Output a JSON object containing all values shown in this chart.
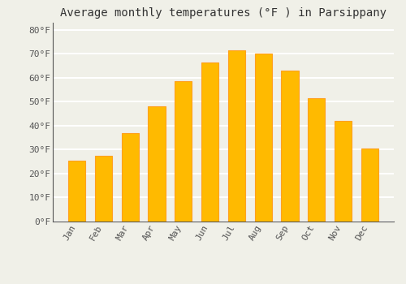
{
  "title": "Average monthly temperatures (°F ) in Parsippany",
  "months": [
    "Jan",
    "Feb",
    "Mar",
    "Apr",
    "May",
    "Jun",
    "Jul",
    "Aug",
    "Sep",
    "Oct",
    "Nov",
    "Dec"
  ],
  "values": [
    25.5,
    27.5,
    37.0,
    48.0,
    58.5,
    66.5,
    71.5,
    70.0,
    63.0,
    51.5,
    42.0,
    30.5
  ],
  "bar_color_top": "#FFBA00",
  "bar_color_bottom": "#FFA020",
  "background_color": "#F0F0E8",
  "grid_color": "#FFFFFF",
  "ylim": [
    0,
    83
  ],
  "yticks": [
    0,
    10,
    20,
    30,
    40,
    50,
    60,
    70,
    80
  ],
  "title_fontsize": 10,
  "tick_fontsize": 8,
  "font_family": "monospace"
}
